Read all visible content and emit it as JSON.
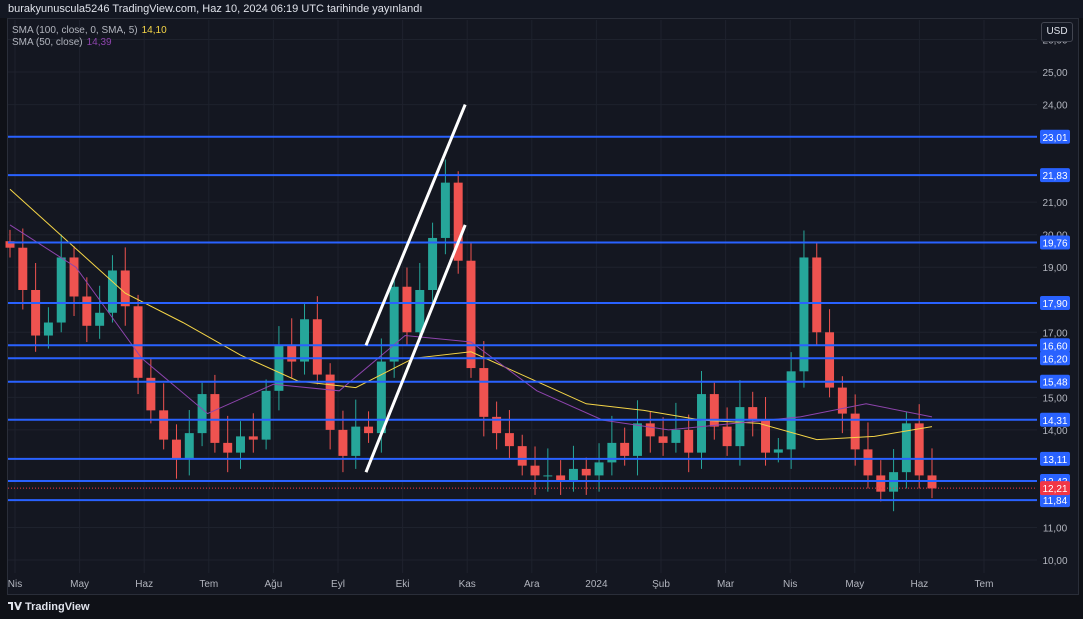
{
  "header": {
    "text": "burakyunuscula5246 TradingView.com, Haz 10, 2024 06:19 UTC tarihinde yayınlandı"
  },
  "legend": {
    "sma100": {
      "label": "SMA (100, close, 0, SMA, 5)",
      "value": "14,10",
      "color": "#f5d547"
    },
    "sma50": {
      "label": "SMA (50, close)",
      "value": "14,39",
      "color": "#8e44ad"
    }
  },
  "currency": "USD",
  "footer": {
    "logo_text": "TradingView"
  },
  "colors": {
    "up": "#26a69a",
    "down": "#ef5350",
    "hline": "#2962ff",
    "channel": "#ffffff",
    "current": "#f23645"
  },
  "chart_data": {
    "type": "candlestick",
    "title": "",
    "ylim": [
      9.6,
      26.6
    ],
    "y_ticks": [
      "10,00",
      "11,00",
      "14,00",
      "15,00",
      "17,00",
      "19,00",
      "20,00",
      "21,00",
      "24,00",
      "25,00",
      "26,00"
    ],
    "x_ticks": [
      "Nis",
      "May",
      "Haz",
      "Tem",
      "Ağu",
      "Eyl",
      "Eki",
      "Kas",
      "Ara",
      "2024",
      "Şub",
      "Mar",
      "Nis",
      "May",
      "Haz",
      "Tem"
    ],
    "horizontal_levels": [
      {
        "label": "23,01",
        "value": 23.01
      },
      {
        "label": "21,83",
        "value": 21.83
      },
      {
        "label": "19,76",
        "value": 19.76
      },
      {
        "label": "17,90",
        "value": 17.9
      },
      {
        "label": "16,60",
        "value": 16.6
      },
      {
        "label": "16,20",
        "value": 16.2
      },
      {
        "label": "15,48",
        "value": 15.48
      },
      {
        "label": "14,31",
        "value": 14.31
      },
      {
        "label": "13,11",
        "value": 13.11
      },
      {
        "label": "12,43",
        "value": 12.43
      },
      {
        "label": "11,84",
        "value": 11.84
      }
    ],
    "current_price": {
      "label": "12,21",
      "value": 12.21
    },
    "channel_lines": [
      {
        "from": {
          "x": "Eyl",
          "y": 16.6
        },
        "to": {
          "x": "Kas",
          "y": 24.0
        }
      },
      {
        "from": {
          "x": "Eyl",
          "y": 12.7
        },
        "to": {
          "x": "Kas",
          "y": 20.3
        }
      }
    ],
    "series": [
      {
        "name": "price (approx. weekly close)",
        "values": [
          19.6,
          18.3,
          16.9,
          17.3,
          19.3,
          18.1,
          17.2,
          17.6,
          18.9,
          17.8,
          15.6,
          14.6,
          13.7,
          13.1,
          13.9,
          15.1,
          13.6,
          13.3,
          13.8,
          13.7,
          15.2,
          16.6,
          16.1,
          17.4,
          15.7,
          14.0,
          13.2,
          14.1,
          13.9,
          16.1,
          18.4,
          17.0,
          18.3,
          19.9,
          21.6,
          19.2,
          15.9,
          14.4,
          13.9,
          13.5,
          12.9,
          12.6,
          12.6,
          12.4,
          12.8,
          12.6,
          13.0,
          13.6,
          13.2,
          14.2,
          13.8,
          13.6,
          14.0,
          13.3,
          15.1,
          14.1,
          13.5,
          14.7,
          14.3,
          13.3,
          13.4,
          15.8,
          19.3,
          17.0,
          15.3,
          14.5,
          13.4,
          12.6,
          12.1,
          12.7,
          14.2,
          12.6,
          12.2
        ]
      },
      {
        "name": "SMA (100, close, 0, SMA, 5)",
        "values": [
          21.4,
          19.8,
          18.2,
          17.3,
          16.3,
          15.5,
          15.3,
          16.2,
          16.4,
          15.6,
          14.8,
          14.6,
          14.3,
          14.2,
          13.7,
          13.8,
          14.1
        ]
      },
      {
        "name": "SMA (50, close)",
        "values": [
          20.3,
          19.0,
          16.2,
          14.5,
          15.4,
          15.2,
          16.9,
          16.7,
          15.2,
          14.3,
          14.0,
          14.2,
          14.4,
          14.8,
          14.4
        ]
      }
    ]
  }
}
